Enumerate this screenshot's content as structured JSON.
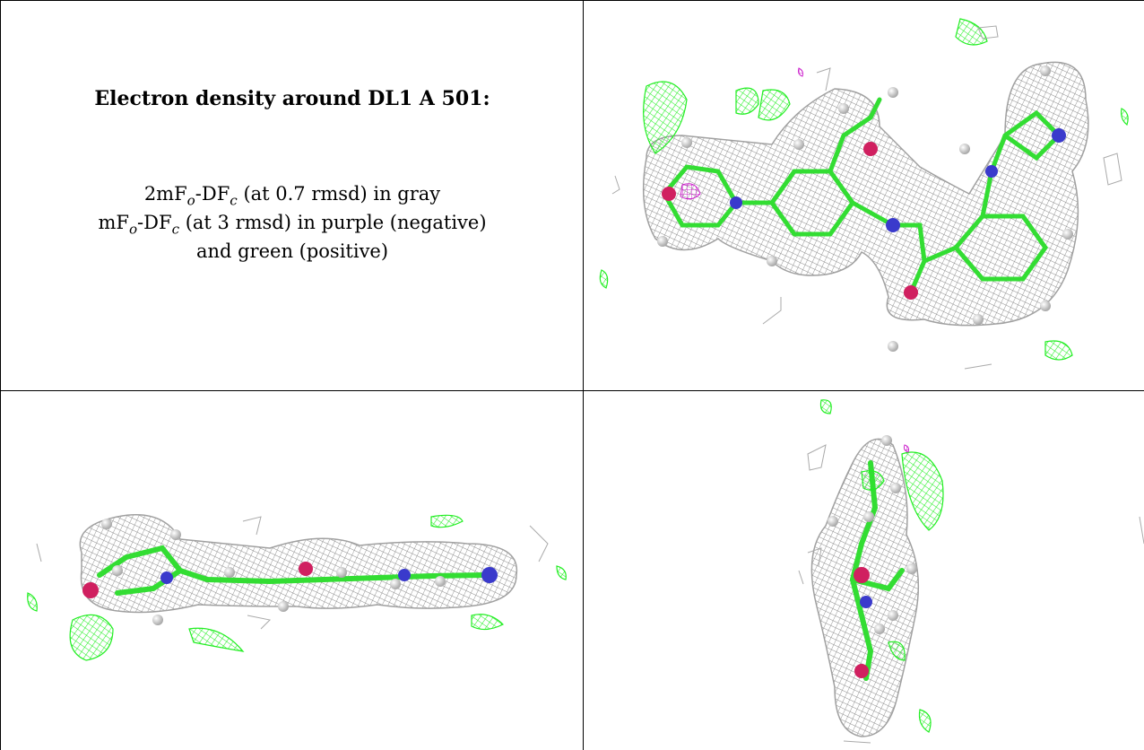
{
  "caption": {
    "title": "Electron density around DL1 A 501:",
    "line1": {
      "prefix": "2mF",
      "sub1": "o",
      "mid": "-DF",
      "sub2": "c",
      "suffix": " (at 0.7 rmsd) in gray"
    },
    "line2": {
      "prefix": "mF",
      "sub1": "o",
      "mid": "-DF",
      "sub2": "c",
      "suffix": " (at 3 rmsd) in purple (negative)"
    },
    "line3": "and green (positive)"
  },
  "colors": {
    "map_2fofc": "#9a9a9a",
    "map_positive": "#22ee22",
    "map_negative": "#cc22cc",
    "carbon": "#33dd33",
    "nitrogen": "#3a3acc",
    "oxygen": "#d02060",
    "hydrogen": "#dcdcdc"
  },
  "views": [
    {
      "name": "view-top-right"
    },
    {
      "name": "view-bottom-left"
    },
    {
      "name": "view-bottom-right"
    }
  ]
}
